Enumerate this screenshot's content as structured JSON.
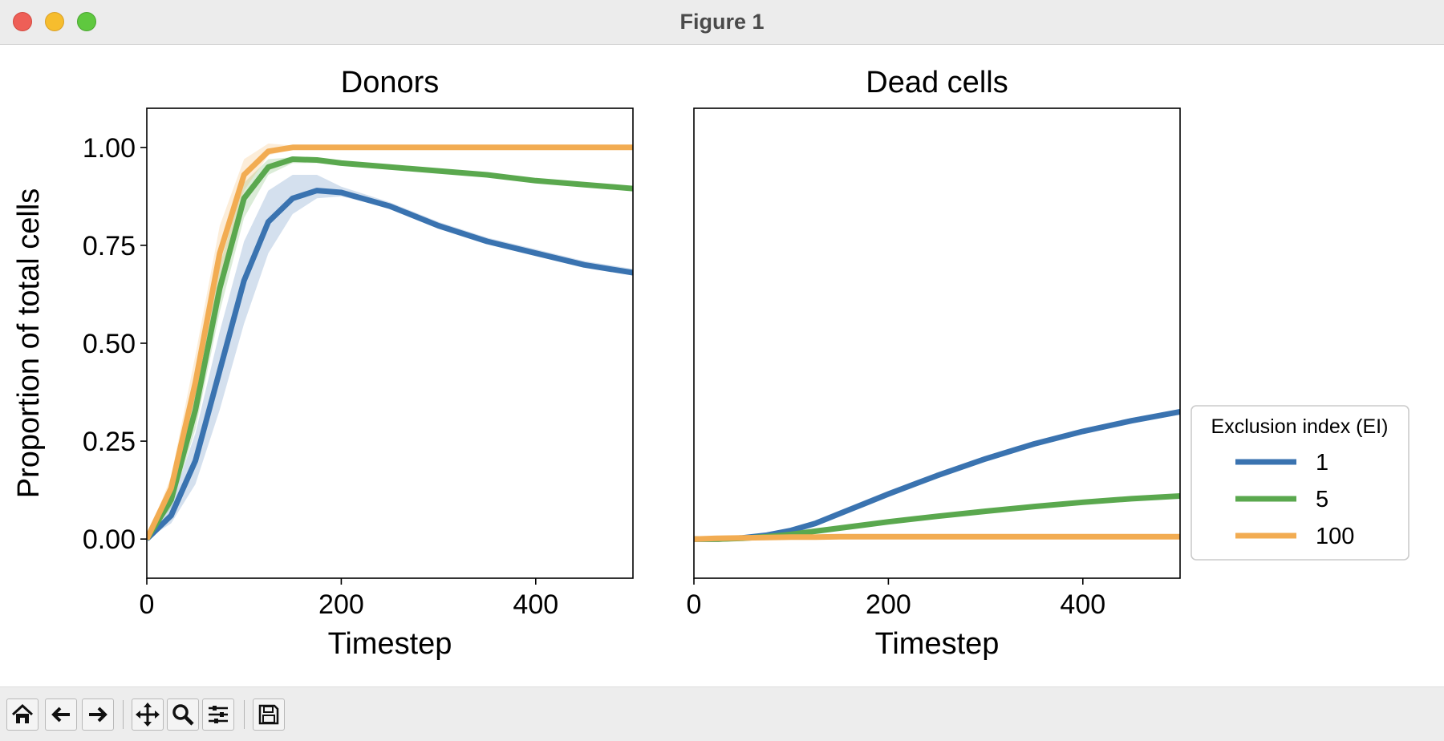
{
  "window": {
    "title": "Figure 1"
  },
  "toolbar": {
    "buttons": [
      {
        "icon": "home-icon"
      },
      {
        "icon": "back-arrow-icon"
      },
      {
        "icon": "forward-arrow-icon"
      },
      {
        "icon": "pan-icon"
      },
      {
        "icon": "zoom-icon"
      },
      {
        "icon": "configure-subplots-icon"
      },
      {
        "icon": "save-icon"
      }
    ]
  },
  "chart_data": [
    {
      "type": "line",
      "title": "Donors",
      "xlabel": "Timestep",
      "ylabel": "Proportion of total cells",
      "xlim": [
        0,
        500
      ],
      "ylim": [
        -0.1,
        1.1
      ],
      "xticks": [
        "0",
        "200",
        "400"
      ],
      "yticks": [
        "0.00",
        "0.25",
        "0.50",
        "0.75",
        "1.00"
      ],
      "x": [
        0,
        25,
        50,
        75,
        100,
        125,
        150,
        175,
        200,
        250,
        300,
        350,
        400,
        450,
        500
      ],
      "series": [
        {
          "name": "1",
          "color": "#3a73b0",
          "values": [
            0.0,
            0.06,
            0.2,
            0.43,
            0.66,
            0.81,
            0.87,
            0.89,
            0.885,
            0.85,
            0.8,
            0.76,
            0.73,
            0.7,
            0.68
          ],
          "lower": [
            0.0,
            0.04,
            0.14,
            0.33,
            0.55,
            0.73,
            0.83,
            0.87,
            0.875,
            0.845,
            0.795,
            0.755,
            0.725,
            0.695,
            0.675
          ],
          "upper": [
            0.0,
            0.09,
            0.27,
            0.53,
            0.76,
            0.89,
            0.93,
            0.93,
            0.9,
            0.86,
            0.81,
            0.77,
            0.74,
            0.71,
            0.69
          ]
        },
        {
          "name": "5",
          "color": "#5aa84e",
          "values": [
            0.0,
            0.1,
            0.33,
            0.64,
            0.87,
            0.95,
            0.97,
            0.968,
            0.96,
            0.95,
            0.94,
            0.93,
            0.915,
            0.905,
            0.895
          ],
          "lower": [
            0.0,
            0.08,
            0.28,
            0.58,
            0.82,
            0.93,
            0.96,
            0.96,
            0.955,
            0.945,
            0.935,
            0.925,
            0.91,
            0.9,
            0.89
          ],
          "upper": [
            0.0,
            0.12,
            0.38,
            0.7,
            0.91,
            0.97,
            0.975,
            0.972,
            0.965,
            0.955,
            0.945,
            0.935,
            0.92,
            0.91,
            0.9
          ]
        },
        {
          "name": "100",
          "color": "#f2ac52",
          "values": [
            0.0,
            0.13,
            0.4,
            0.73,
            0.93,
            0.99,
            1.0,
            1.0,
            1.0,
            1.0,
            1.0,
            1.0,
            1.0,
            1.0,
            1.0
          ],
          "lower": [
            0.0,
            0.11,
            0.35,
            0.67,
            0.89,
            0.98,
            0.995,
            1.0,
            1.0,
            1.0,
            1.0,
            1.0,
            1.0,
            1.0,
            1.0
          ],
          "upper": [
            0.0,
            0.16,
            0.47,
            0.8,
            0.97,
            1.01,
            1.005,
            1.0,
            1.0,
            1.0,
            1.0,
            1.0,
            1.0,
            1.0,
            1.0
          ]
        }
      ]
    },
    {
      "type": "line",
      "title": "Dead cells",
      "xlabel": "Timestep",
      "ylabel": "",
      "xlim": [
        0,
        500
      ],
      "ylim": [
        -0.1,
        1.1
      ],
      "xticks": [
        "0",
        "200",
        "400"
      ],
      "yticks": [],
      "x": [
        0,
        25,
        50,
        75,
        100,
        125,
        150,
        175,
        200,
        250,
        300,
        350,
        400,
        450,
        500
      ],
      "series": [
        {
          "name": "1",
          "color": "#3a73b0",
          "values": [
            0.0,
            0.0,
            0.003,
            0.01,
            0.022,
            0.04,
            0.065,
            0.09,
            0.115,
            0.162,
            0.205,
            0.243,
            0.275,
            0.302,
            0.325
          ],
          "lower": [
            0.0,
            0.0,
            0.001,
            0.006,
            0.016,
            0.033,
            0.057,
            0.082,
            0.107,
            0.155,
            0.198,
            0.236,
            0.268,
            0.295,
            0.318
          ],
          "upper": [
            0.0,
            0.001,
            0.005,
            0.014,
            0.028,
            0.047,
            0.073,
            0.098,
            0.123,
            0.169,
            0.212,
            0.25,
            0.282,
            0.309,
            0.332
          ]
        },
        {
          "name": "5",
          "color": "#5aa84e",
          "values": [
            0.0,
            0.0,
            0.002,
            0.006,
            0.012,
            0.02,
            0.028,
            0.036,
            0.044,
            0.058,
            0.071,
            0.083,
            0.094,
            0.103,
            0.11
          ],
          "lower": [
            0.0,
            0.0,
            0.001,
            0.004,
            0.009,
            0.016,
            0.024,
            0.032,
            0.04,
            0.054,
            0.067,
            0.079,
            0.09,
            0.099,
            0.106
          ],
          "upper": [
            0.0,
            0.001,
            0.003,
            0.008,
            0.015,
            0.024,
            0.032,
            0.04,
            0.048,
            0.062,
            0.075,
            0.087,
            0.098,
            0.107,
            0.114
          ]
        },
        {
          "name": "100",
          "color": "#f2ac52",
          "values": [
            0.0,
            0.002,
            0.003,
            0.004,
            0.005,
            0.005,
            0.006,
            0.006,
            0.006,
            0.006,
            0.006,
            0.006,
            0.006,
            0.006,
            0.006
          ],
          "lower": [
            0.0,
            0.001,
            0.002,
            0.003,
            0.004,
            0.004,
            0.005,
            0.005,
            0.005,
            0.005,
            0.005,
            0.005,
            0.005,
            0.005,
            0.005
          ],
          "upper": [
            0.0,
            0.003,
            0.004,
            0.005,
            0.006,
            0.006,
            0.007,
            0.007,
            0.007,
            0.007,
            0.007,
            0.007,
            0.007,
            0.007,
            0.007
          ]
        }
      ]
    }
  ],
  "legend": {
    "title": "Exclusion index (EI)",
    "placement": "right, outside second axes",
    "entries": [
      {
        "label": "1",
        "color": "#3a73b0"
      },
      {
        "label": "5",
        "color": "#5aa84e"
      },
      {
        "label": "100",
        "color": "#f2ac52"
      }
    ]
  }
}
